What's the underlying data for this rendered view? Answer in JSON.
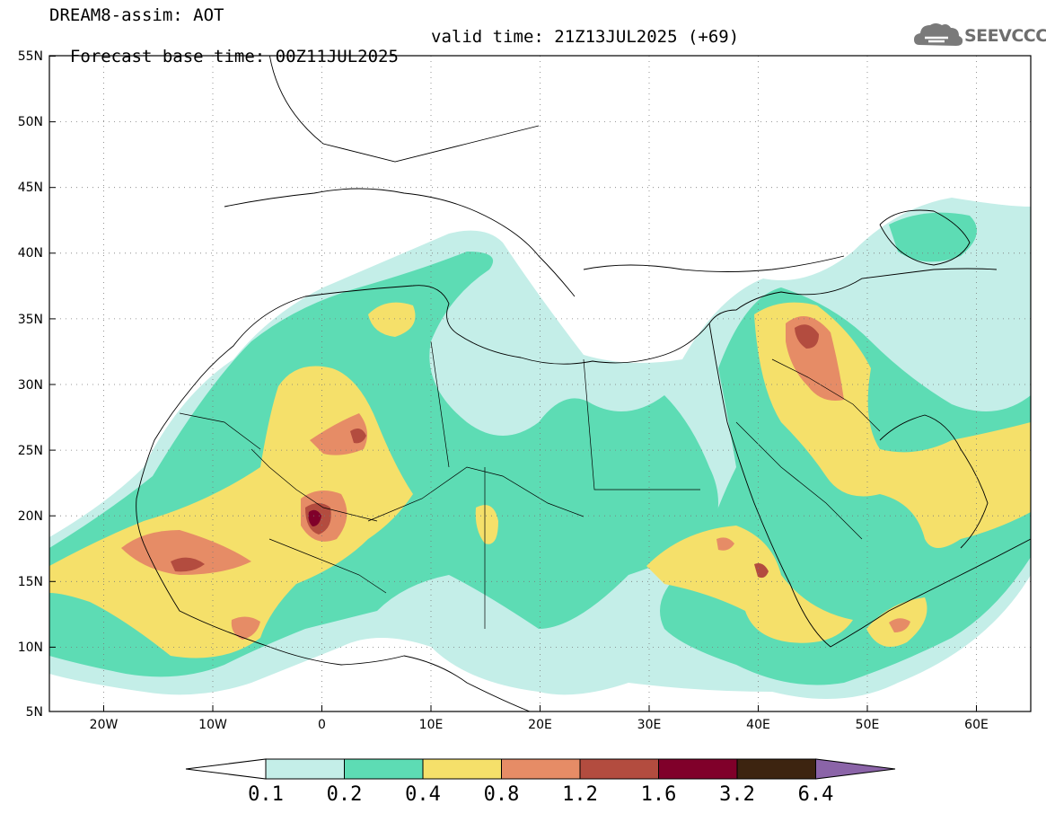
{
  "header": {
    "model_title": "DREAM8-assim: AOT",
    "base_time": "Forecast base time: 00Z11JUL2025",
    "valid_time": "valid time: 21Z13JUL2025 (+69)"
  },
  "logo": {
    "text": "SEEVCCC",
    "icon": "cloud-icon"
  },
  "map": {
    "lat_labels": [
      "55N",
      "50N",
      "45N",
      "40N",
      "35N",
      "30N",
      "25N",
      "20N",
      "15N",
      "10N",
      "5N"
    ],
    "lon_labels": [
      "20W",
      "10W",
      "0",
      "10E",
      "20E",
      "30E",
      "40E",
      "50E",
      "60E"
    ]
  },
  "colorbar": {
    "levels": [
      "0.1",
      "0.2",
      "0.4",
      "0.8",
      "1.2",
      "1.6",
      "3.2",
      "6.4"
    ],
    "colors": [
      "#ffffff",
      "#c4eee8",
      "#5ddcb4",
      "#f5e06a",
      "#e68c66",
      "#b34c3f",
      "#80002a",
      "#3d2410",
      "#8b64a8"
    ]
  }
}
